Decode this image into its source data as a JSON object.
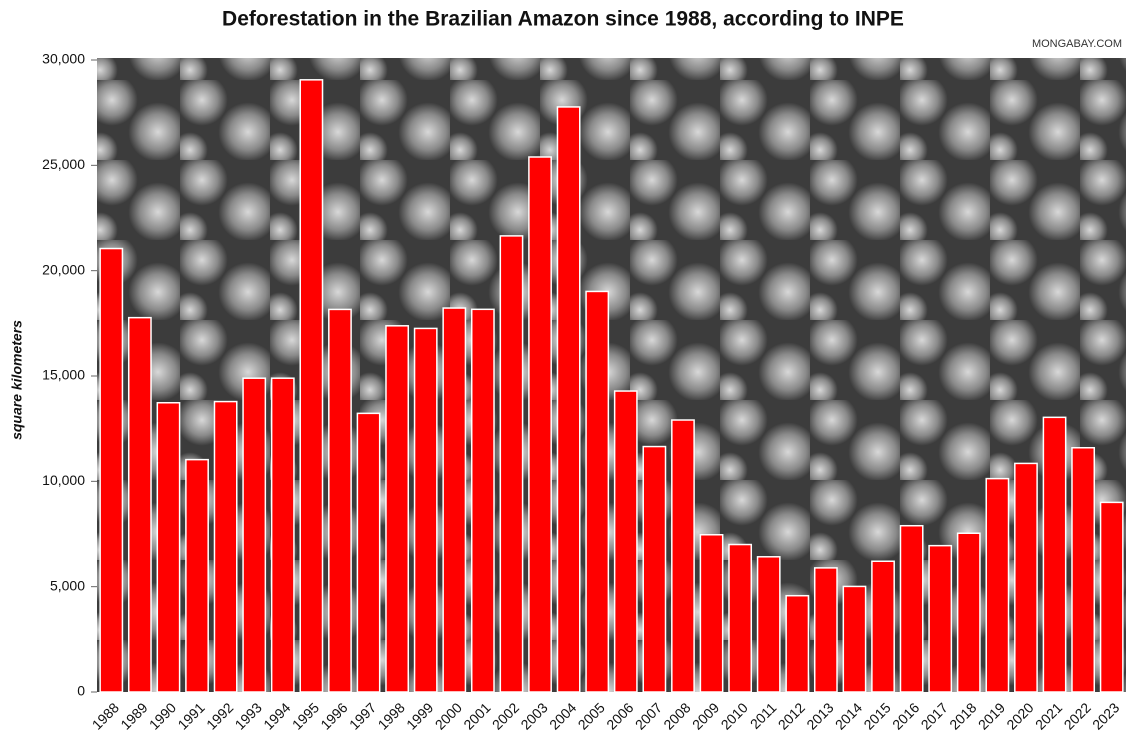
{
  "chart_data": {
    "type": "bar",
    "title": "Deforestation in the Brazilian Amazon since 1988, according to INPE",
    "source": "MONGABAY.COM",
    "y_label": "square kilometers",
    "categories": [
      "1988",
      "1989",
      "1990",
      "1991",
      "1992",
      "1993",
      "1994",
      "1995",
      "1996",
      "1997",
      "1998",
      "1999",
      "2000",
      "2001",
      "2002",
      "2003",
      "2004",
      "2005",
      "2006",
      "2007",
      "2008",
      "2009",
      "2010",
      "2011",
      "2012",
      "2013",
      "2014",
      "2015",
      "2016",
      "2017",
      "2018",
      "2019",
      "2020",
      "2021",
      "2022",
      "2023"
    ],
    "values": [
      21050,
      17770,
      13730,
      11030,
      13786,
      14896,
      14896,
      29059,
      18161,
      13227,
      17383,
      17259,
      18226,
      18165,
      21651,
      25396,
      27772,
      19014,
      14286,
      11651,
      12911,
      7464,
      7000,
      6418,
      4571,
      5891,
      5012,
      6207,
      7893,
      6947,
      7536,
      10129,
      10851,
      13038,
      11594,
      9001
    ],
    "color": "#ff0000",
    "ylim": [
      0,
      30000
    ],
    "yticks": [
      0,
      {
        "value": 5000,
        "label": "5,000"
      },
      {
        "value": 10000,
        "label": "10,000"
      },
      {
        "value": 15000,
        "label": "15,000"
      },
      {
        "value": 20000,
        "label": "20,000"
      },
      {
        "value": 25000,
        "label": "25,000"
      },
      {
        "value": 30000,
        "label": "30,000"
      }
    ],
    "grid": false
  }
}
